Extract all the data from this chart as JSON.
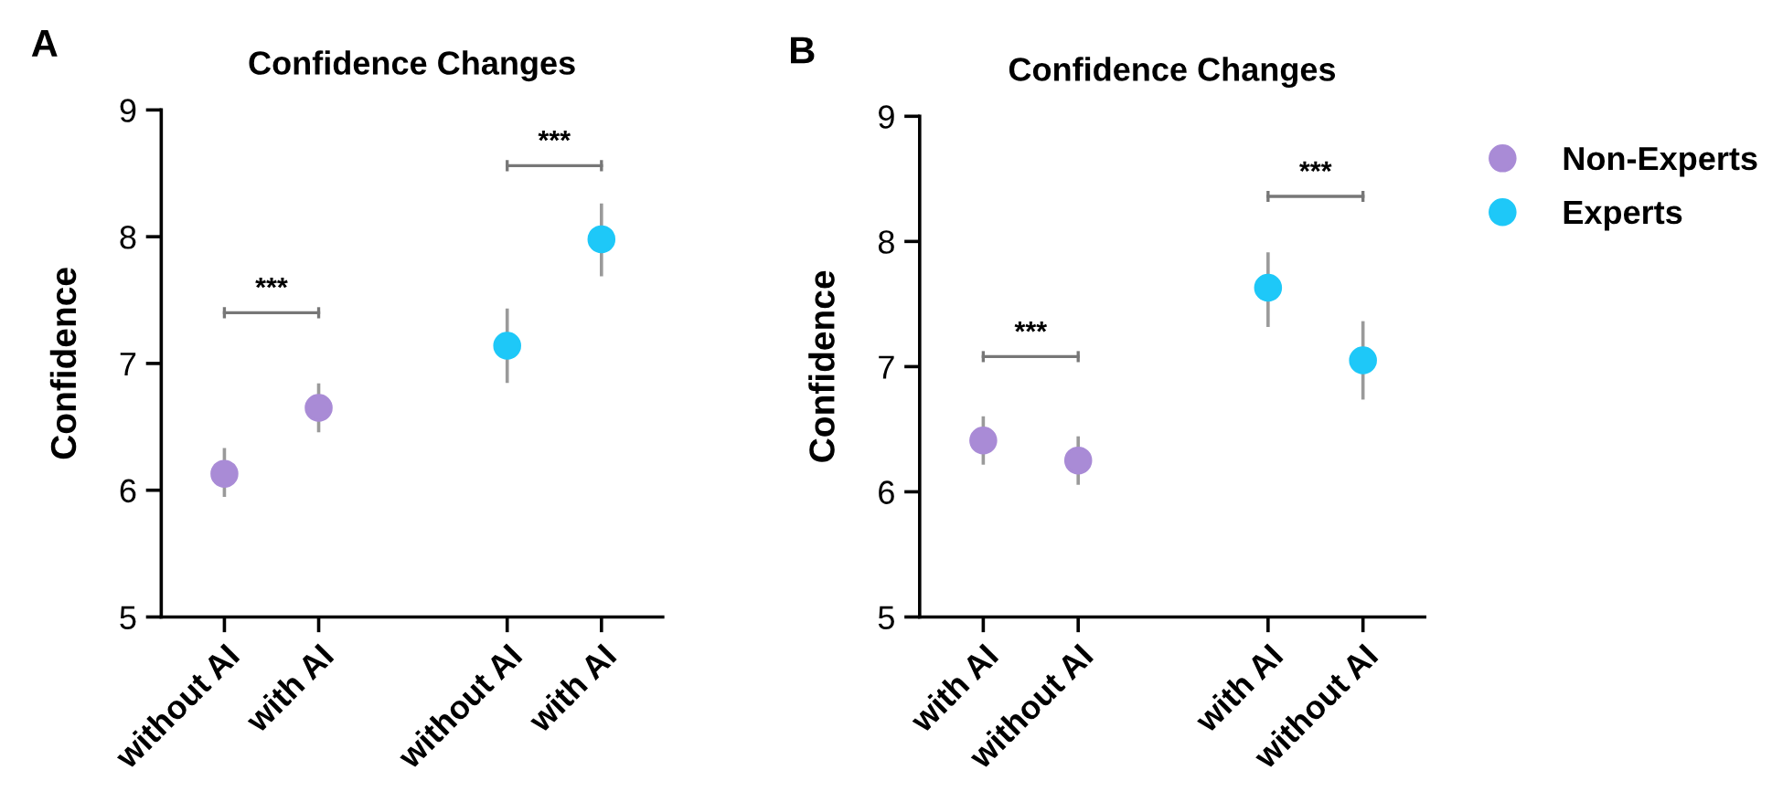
{
  "chart_data": [
    {
      "type": "scatter",
      "title": "Confidence Changes",
      "ylabel": "Confidence",
      "categories": [
        "without AI",
        "with AI",
        null,
        "without AI",
        "with AI"
      ],
      "ylim": [
        5,
        9
      ],
      "yticks": [
        5,
        6,
        7,
        8,
        9
      ],
      "grid": false,
      "marker": "circle",
      "series": [
        {
          "color": "#a98bd6",
          "values": [
            6.13,
            6.65,
            null,
            null,
            null
          ],
          "errors": [
            [
              5.96,
              6.32
            ],
            [
              6.47,
              6.83
            ],
            null,
            null,
            null
          ]
        },
        {
          "color": "#1ec8f8",
          "values": [
            null,
            null,
            null,
            7.14,
            7.98
          ],
          "errors": [
            null,
            null,
            null,
            [
              6.86,
              7.42
            ],
            [
              7.7,
              8.25
            ]
          ]
        }
      ],
      "annotations": [
        "A",
        "***",
        "***"
      ]
    },
    {
      "type": "scatter",
      "title": "Confidence Changes",
      "ylabel": "Confidence",
      "categories": [
        "with AI",
        "without AI",
        null,
        "with AI",
        "without AI"
      ],
      "ylim": [
        5,
        9
      ],
      "yticks": [
        5,
        6,
        7,
        8,
        9
      ],
      "grid": false,
      "legend": "right",
      "marker": "circle",
      "series": [
        {
          "name": "Non-Experts",
          "color": "#a98bd6",
          "values": [
            6.41,
            6.25,
            null,
            null,
            null
          ],
          "errors": [
            [
              6.23,
              6.59
            ],
            [
              6.07,
              6.43
            ],
            null,
            null,
            null
          ]
        },
        {
          "name": "Experts",
          "color": "#1ec8f8",
          "values": [
            null,
            null,
            null,
            7.63,
            7.05
          ],
          "errors": [
            null,
            null,
            null,
            [
              7.33,
              7.9
            ],
            [
              6.75,
              7.35
            ]
          ]
        }
      ],
      "annotations": [
        "B",
        "***",
        "***"
      ]
    }
  ]
}
